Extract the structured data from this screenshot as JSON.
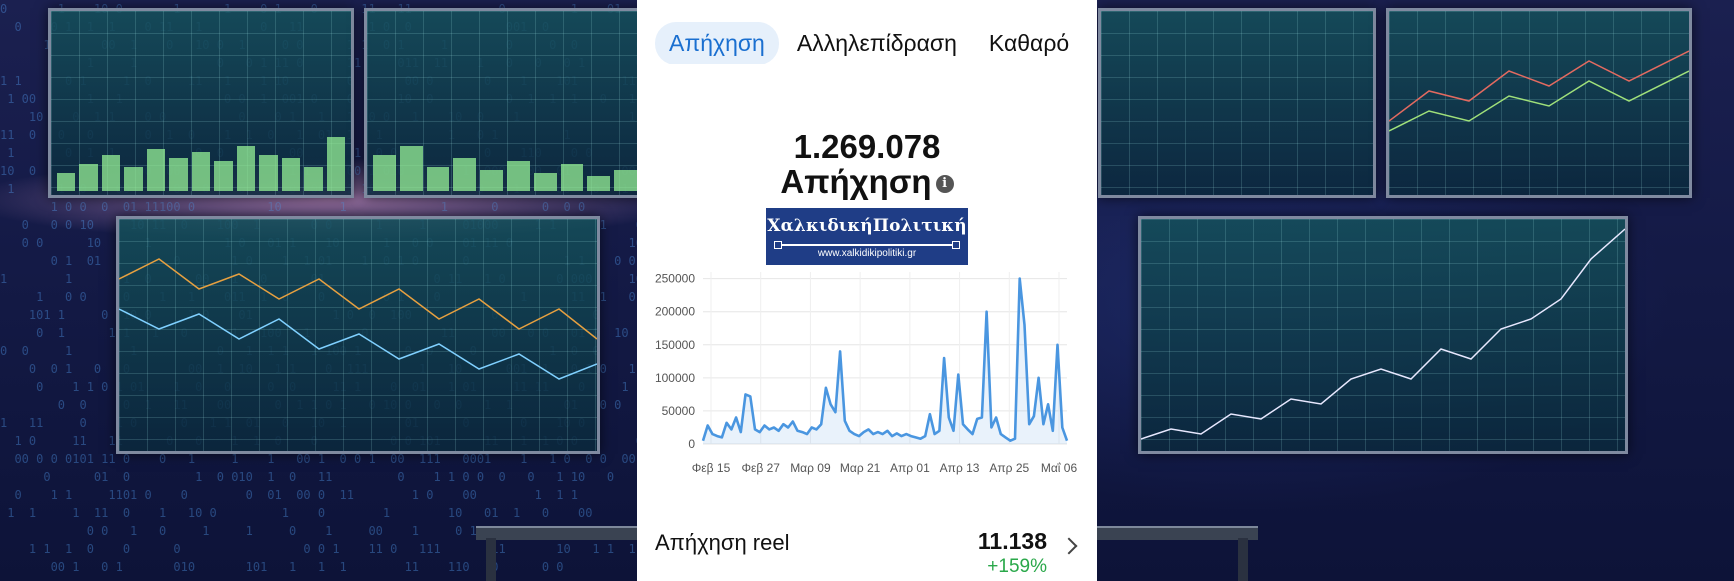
{
  "tabs": [
    {
      "label": "Απήχηση",
      "active": true
    },
    {
      "label": "Αλληλεπίδραση",
      "active": false
    },
    {
      "label": "Καθαρό",
      "active": false
    }
  ],
  "summary": {
    "value": "1.269.078",
    "label": "Απήχηση",
    "info_icon": "info-icon"
  },
  "logo": {
    "title": "ΧαλκιδικήΠολιτική",
    "url": "www.xalkidikipolitiki.gr"
  },
  "chart_data": {
    "type": "area",
    "x_ticks": [
      "Φεβ 15",
      "Φεβ 27",
      "Μαρ 09",
      "Μαρ 21",
      "Απρ 01",
      "Απρ 13",
      "Απρ 25",
      "Μαΐ 06"
    ],
    "y_ticks": [
      "250000",
      "200000",
      "150000",
      "100000",
      "50000",
      "0"
    ],
    "ylim": [
      0,
      260000
    ],
    "grid": true,
    "values": [
      5000,
      28000,
      15000,
      12000,
      10000,
      32000,
      22000,
      40000,
      18000,
      75000,
      72000,
      22000,
      18000,
      28000,
      22000,
      25000,
      20000,
      30000,
      25000,
      34000,
      20000,
      18000,
      15000,
      25000,
      22000,
      30000,
      85000,
      60000,
      48000,
      140000,
      35000,
      20000,
      15000,
      12000,
      18000,
      22000,
      15000,
      18000,
      15000,
      20000,
      12000,
      16000,
      12000,
      15000,
      12000,
      10000,
      8000,
      12000,
      45000,
      15000,
      20000,
      130000,
      40000,
      20000,
      105000,
      30000,
      22000,
      15000,
      38000,
      40000,
      200000,
      25000,
      40000,
      15000,
      10000,
      5000,
      8000,
      250000,
      180000,
      30000,
      42000,
      100000,
      30000,
      60000,
      20000,
      150000,
      25000,
      5000
    ],
    "color": "#4a96e0"
  },
  "reel": {
    "label": "Απήχηση reel",
    "value": "11.138",
    "change": "+159%"
  }
}
